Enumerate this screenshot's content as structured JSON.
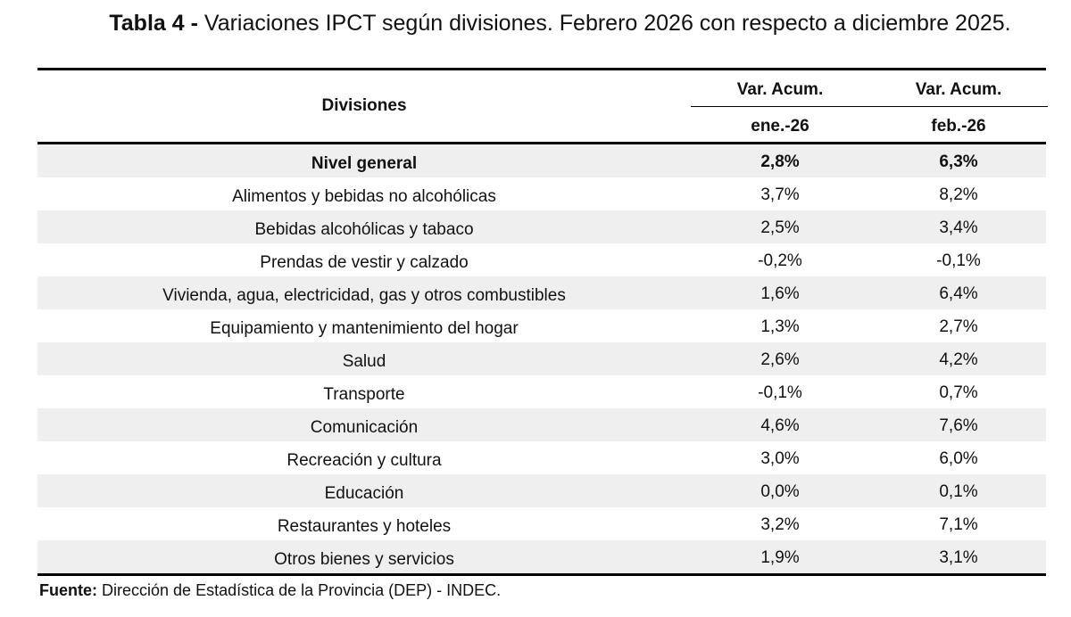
{
  "title": {
    "label": "Tabla 4 -",
    "text": "Variaciones IPCT según divisiones. Febrero 2026 con respecto a diciembre 2025."
  },
  "table": {
    "header_divisions": "Divisiones",
    "columns": [
      {
        "top": "Var. Acum.",
        "bottom": "ene.-26"
      },
      {
        "top": "Var. Acum.",
        "bottom": "feb.-26"
      }
    ],
    "rows": [
      {
        "name": "Nivel general",
        "v1": "2,8%",
        "v2": "6,3%"
      },
      {
        "name": "Alimentos y bebidas no alcohólicas",
        "v1": "3,7%",
        "v2": "8,2%"
      },
      {
        "name": "Bebidas alcohólicas y tabaco",
        "v1": "2,5%",
        "v2": "3,4%"
      },
      {
        "name": "Prendas de vestir y calzado",
        "v1": "-0,2%",
        "v2": "-0,1%"
      },
      {
        "name": "Vivienda, agua, electricidad, gas y otros combustibles",
        "v1": "1,6%",
        "v2": "6,4%"
      },
      {
        "name": "Equipamiento y mantenimiento del hogar",
        "v1": "1,3%",
        "v2": "2,7%"
      },
      {
        "name": "Salud",
        "v1": "2,6%",
        "v2": "4,2%"
      },
      {
        "name": "Transporte",
        "v1": "-0,1%",
        "v2": "0,7%"
      },
      {
        "name": "Comunicación",
        "v1": "4,6%",
        "v2": "7,6%"
      },
      {
        "name": "Recreación y cultura",
        "v1": "3,0%",
        "v2": "6,0%"
      },
      {
        "name": "Educación",
        "v1": "0,0%",
        "v2": "0,1%"
      },
      {
        "name": "Restaurantes y hoteles",
        "v1": "3,2%",
        "v2": "7,1%"
      },
      {
        "name": "Otros bienes y servicios",
        "v1": "1,9%",
        "v2": "3,1%"
      }
    ]
  },
  "source": {
    "label": "Fuente:",
    "text": "Dirección de Estadística de la Provincia (DEP) - INDEC."
  },
  "colors": {
    "row_shade": "#efefef",
    "rule": "#000000"
  }
}
